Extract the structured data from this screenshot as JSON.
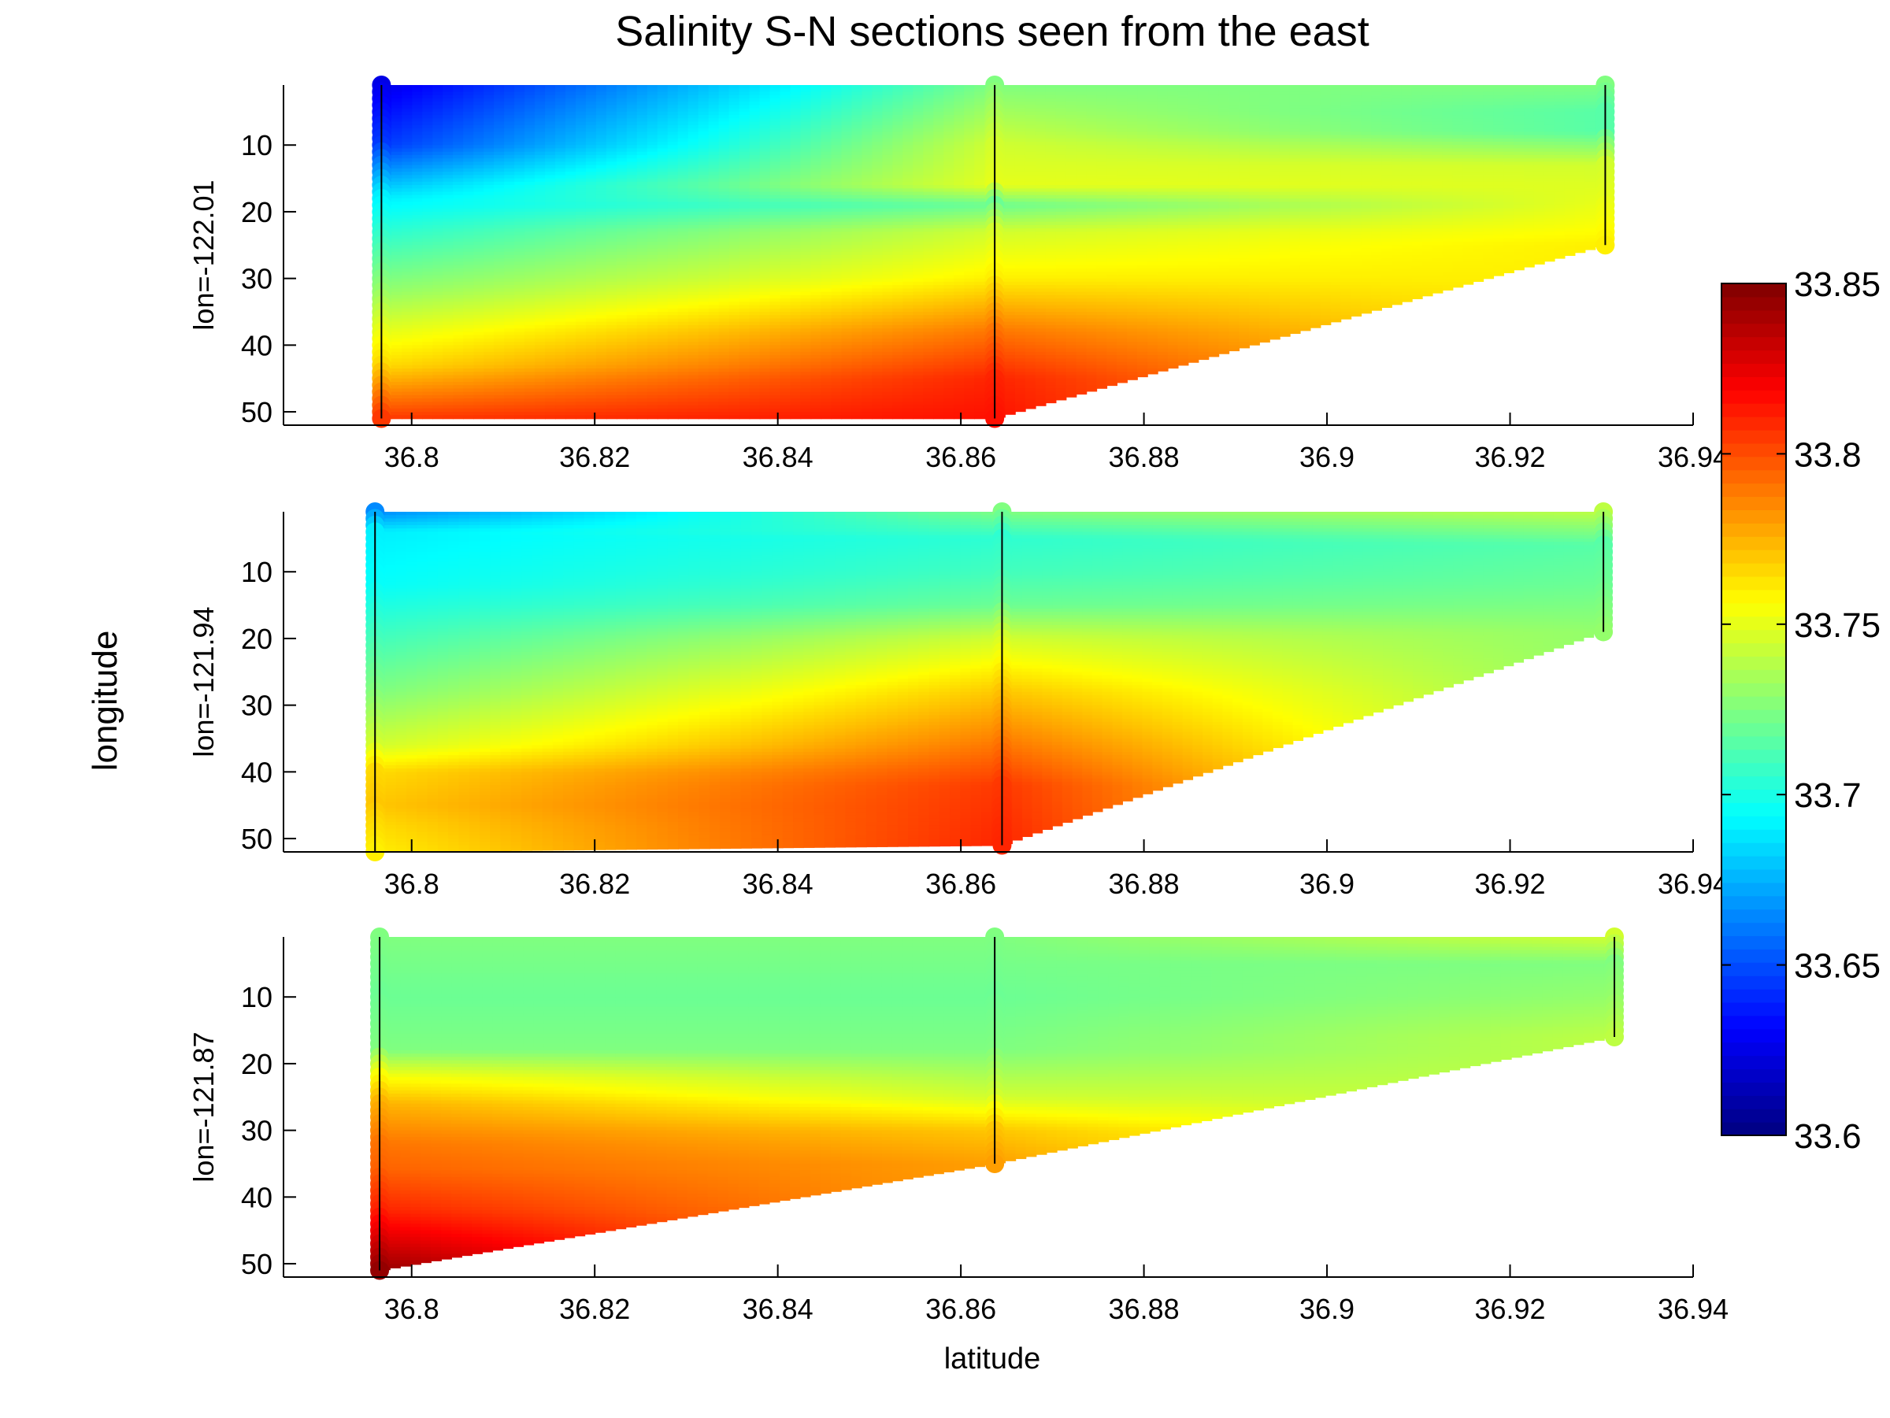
{
  "chart_data": {
    "type": "heatmap",
    "title": "Salinity S-N sections seen from the east",
    "xlabel": "latitude",
    "ylabel": "longitude",
    "xlim": [
      36.786,
      36.94
    ],
    "ylim": [
      52,
      1
    ],
    "xticks": [
      36.8,
      36.82,
      36.84,
      36.86,
      36.88,
      36.9,
      36.92,
      36.94
    ],
    "xtick_labels": [
      "36.8",
      "36.82",
      "36.84",
      "36.86",
      "36.88",
      "36.9",
      "36.92",
      "36.94"
    ],
    "yticks": [
      10,
      20,
      30,
      40,
      50
    ],
    "ytick_labels": [
      "10",
      "20",
      "30",
      "40",
      "50"
    ],
    "colorbar": {
      "colormap": "jet",
      "range": [
        33.6,
        33.85
      ],
      "ticks": [
        33.6,
        33.65,
        33.7,
        33.75,
        33.8,
        33.85
      ],
      "tick_labels": [
        "33.6",
        "33.65",
        "33.7",
        "33.75",
        "33.8",
        "33.85"
      ]
    },
    "panels": [
      {
        "label": "lon=-122.01",
        "stations": [
          {
            "lat": 36.7967,
            "depth_min": 1,
            "depth_max": 51,
            "profile": [
              [
                1,
                33.625
              ],
              [
                10,
                33.645
              ],
              [
                18,
                33.69
              ],
              [
                25,
                33.71
              ],
              [
                32,
                33.73
              ],
              [
                38,
                33.75
              ],
              [
                43,
                33.765
              ],
              [
                48,
                33.79
              ],
              [
                51,
                33.805
              ]
            ]
          },
          {
            "lat": 36.8637,
            "depth_min": 1,
            "depth_max": 51,
            "profile": [
              [
                1,
                33.725
              ],
              [
                10,
                33.745
              ],
              [
                16,
                33.75
              ],
              [
                19,
                33.72
              ],
              [
                23,
                33.745
              ],
              [
                30,
                33.76
              ],
              [
                38,
                33.79
              ],
              [
                45,
                33.81
              ],
              [
                51,
                33.815
              ]
            ]
          },
          {
            "lat": 36.9304,
            "depth_min": 1,
            "depth_max": 25,
            "profile": [
              [
                1,
                33.725
              ],
              [
                5,
                33.715
              ],
              [
                8,
                33.715
              ],
              [
                13,
                33.745
              ],
              [
                18,
                33.75
              ],
              [
                22,
                33.755
              ],
              [
                25,
                33.76
              ]
            ]
          }
        ]
      },
      {
        "label": "lon=-121.94",
        "stations": [
          {
            "lat": 36.796,
            "depth_min": 1,
            "depth_max": 52,
            "profile": [
              [
                1,
                33.665
              ],
              [
                4,
                33.69
              ],
              [
                12,
                33.695
              ],
              [
                20,
                33.71
              ],
              [
                28,
                33.725
              ],
              [
                36,
                33.745
              ],
              [
                40,
                33.765
              ],
              [
                45,
                33.77
              ],
              [
                48,
                33.765
              ],
              [
                52,
                33.76
              ]
            ]
          },
          {
            "lat": 36.8645,
            "depth_min": 1,
            "depth_max": 51,
            "profile": [
              [
                1,
                33.725
              ],
              [
                5,
                33.705
              ],
              [
                10,
                33.71
              ],
              [
                15,
                33.72
              ],
              [
                20,
                33.745
              ],
              [
                28,
                33.77
              ],
              [
                36,
                33.79
              ],
              [
                42,
                33.805
              ],
              [
                51,
                33.81
              ]
            ]
          },
          {
            "lat": 36.9302,
            "depth_min": 1,
            "depth_max": 19,
            "profile": [
              [
                1,
                33.74
              ],
              [
                6,
                33.715
              ],
              [
                12,
                33.72
              ],
              [
                19,
                33.73
              ]
            ]
          }
        ]
      },
      {
        "label": "lon=-121.87",
        "stations": [
          {
            "lat": 36.7965,
            "depth_min": 1,
            "depth_max": 51,
            "profile": [
              [
                1,
                33.725
              ],
              [
                10,
                33.72
              ],
              [
                18,
                33.725
              ],
              [
                22,
                33.755
              ],
              [
                26,
                33.775
              ],
              [
                32,
                33.79
              ],
              [
                36,
                33.795
              ],
              [
                42,
                33.81
              ],
              [
                51,
                33.845
              ]
            ]
          },
          {
            "lat": 36.8637,
            "depth_min": 1,
            "depth_max": 35,
            "profile": [
              [
                1,
                33.725
              ],
              [
                10,
                33.72
              ],
              [
                18,
                33.725
              ],
              [
                25,
                33.745
              ],
              [
                30,
                33.77
              ],
              [
                35,
                33.78
              ]
            ]
          },
          {
            "lat": 36.9314,
            "depth_min": 1,
            "depth_max": 16,
            "profile": [
              [
                1,
                33.745
              ],
              [
                5,
                33.725
              ],
              [
                10,
                33.73
              ],
              [
                16,
                33.74
              ]
            ]
          }
        ]
      }
    ]
  }
}
